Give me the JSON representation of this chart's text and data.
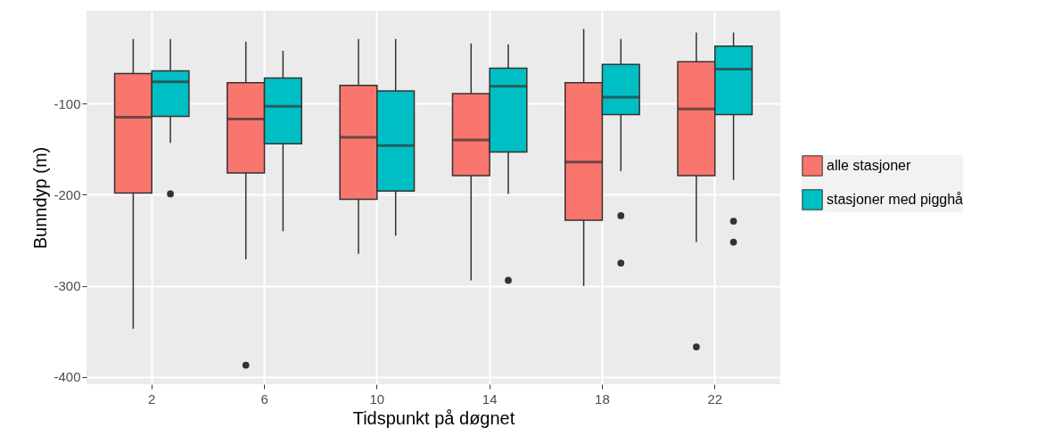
{
  "chart_data": {
    "type": "box",
    "xlabel": "Tidspunkt på døgnet",
    "ylabel": "Bunndyp (m)",
    "categories": [
      "2",
      "6",
      "10",
      "14",
      "18",
      "22"
    ],
    "ylim": [
      -408,
      2
    ],
    "yticks": [
      -400,
      -300,
      -200,
      -100
    ],
    "grid": true,
    "legend": "right",
    "series": [
      {
        "name": "alle stasjoner",
        "color": "#f8766d",
        "boxes": [
          {
            "low": -347,
            "q1": -198,
            "median": -115,
            "q3": -67,
            "high": -29
          },
          {
            "low": -271,
            "q1": -176,
            "median": -117,
            "q3": -77,
            "high": -32,
            "outliers": [
              -387
            ]
          },
          {
            "low": -265,
            "q1": -205,
            "median": -137,
            "q3": -80,
            "high": -29
          },
          {
            "low": -294,
            "q1": -179,
            "median": -140,
            "q3": -89,
            "high": -34
          },
          {
            "low": -300,
            "q1": -228,
            "median": -164,
            "q3": -77,
            "high": -18
          },
          {
            "low": -252,
            "q1": -179,
            "median": -106,
            "q3": -54,
            "high": -22,
            "outliers": [
              -367
            ]
          }
        ]
      },
      {
        "name": "stasjoner med pigghå",
        "color": "#00bfc4",
        "boxes": [
          {
            "low": -143,
            "q1": -114,
            "median": -76,
            "q3": -64,
            "high": -29,
            "outliers": [
              -199
            ]
          },
          {
            "low": -240,
            "q1": -144,
            "median": -103,
            "q3": -72,
            "high": -42
          },
          {
            "low": -245,
            "q1": -196,
            "median": -146,
            "q3": -86,
            "high": -29
          },
          {
            "low": -199,
            "q1": -153,
            "median": -81,
            "q3": -61,
            "high": -35,
            "outliers": [
              -294
            ]
          },
          {
            "low": -174,
            "q1": -112,
            "median": -93,
            "q3": -57,
            "high": -29,
            "outliers": [
              -223,
              -275
            ]
          },
          {
            "low": -184,
            "q1": -112,
            "median": -62,
            "q3": -37,
            "high": -22,
            "outliers": [
              -229,
              -252
            ]
          }
        ]
      }
    ]
  }
}
